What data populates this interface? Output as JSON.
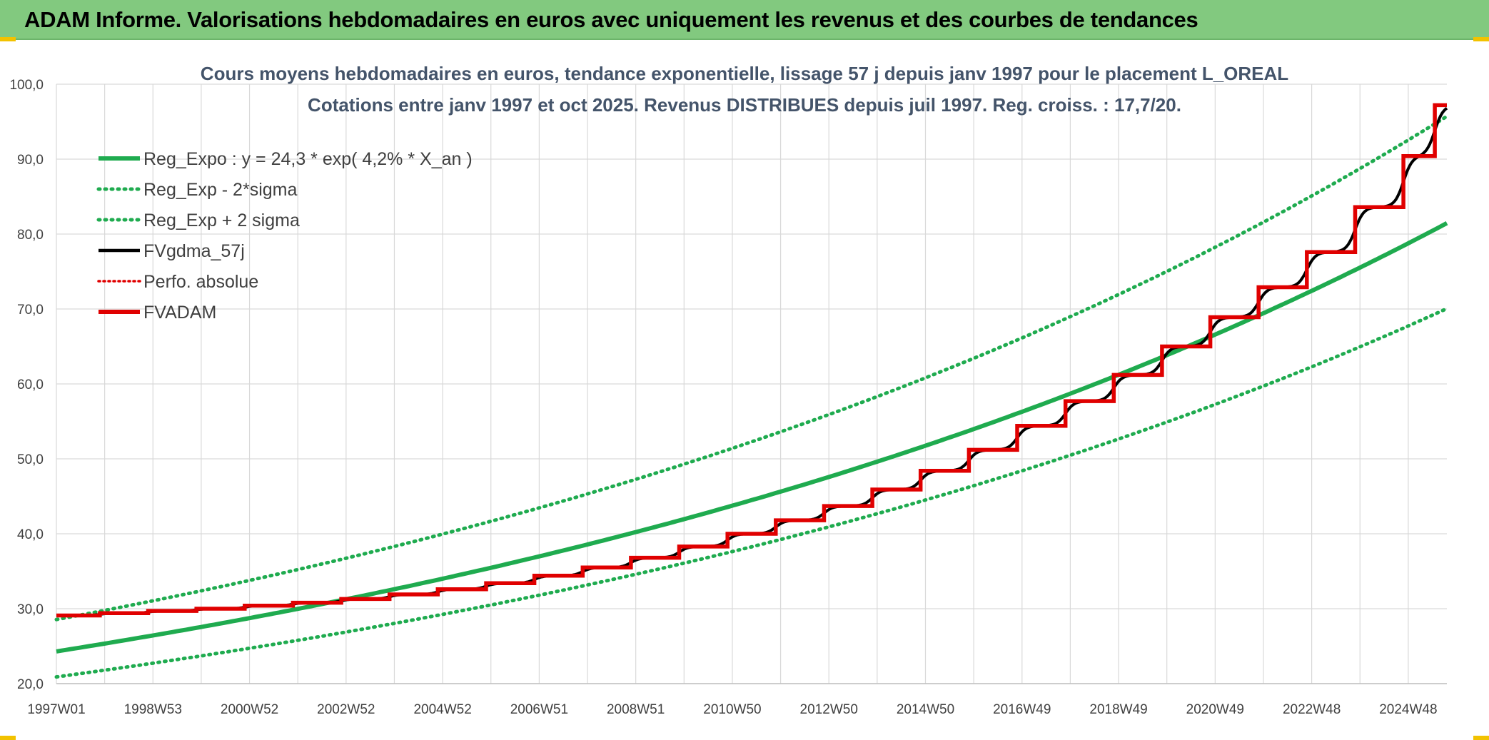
{
  "header": {
    "title": "ADAM Informe. Valorisations hebdomadaires en euros avec uniquement les revenus et des courbes de tendances"
  },
  "chart_data": {
    "type": "line",
    "title": "Cours moyens hebdomadaires en euros, tendance exponentielle, lissage 57 j depuis janv 1997 pour le placement L_OREAL",
    "subtitle": "Cotations entre janv 1997 et oct 2025. Revenus DISTRIBUES depuis juil 1997. Reg. croiss. : 17,7/20.",
    "xlabel": "",
    "ylabel": "",
    "ylim": [
      20,
      100
    ],
    "y_ticks": [
      "20,0",
      "30,0",
      "40,0",
      "50,0",
      "60,0",
      "70,0",
      "80,0",
      "90,0",
      "100,0"
    ],
    "x_tick_labels": [
      "1997W01",
      "1998W53",
      "2000W52",
      "2002W52",
      "2004W52",
      "2006W51",
      "2008W51",
      "2010W50",
      "2012W50",
      "2014W50",
      "2016W49",
      "2018W49",
      "2020W49",
      "2022W48",
      "2024W48"
    ],
    "x_range_years": [
      1997.0,
      2025.8
    ],
    "grid": true,
    "legend_position": "top-left",
    "reg_expo": {
      "a": 24.3,
      "rate": 0.042
    },
    "sigma_factors": {
      "lower": 0.86,
      "upper": 1.175
    },
    "fvadam_steps": {
      "years": [
        1997,
        1998,
        1999,
        2000,
        2001,
        2002,
        2003,
        2004,
        2005,
        2006,
        2007,
        2008,
        2009,
        2010,
        2011,
        2012,
        2013,
        2014,
        2015,
        2016,
        2017,
        2018,
        2019,
        2020,
        2021,
        2022,
        2023,
        2024,
        2025
      ],
      "values": [
        29.1,
        29.4,
        29.7,
        30.0,
        30.4,
        30.8,
        31.3,
        31.9,
        32.6,
        33.4,
        34.4,
        35.5,
        36.8,
        38.3,
        40.0,
        41.8,
        43.7,
        45.9,
        48.4,
        51.2,
        54.4,
        57.7,
        61.2,
        65.0,
        68.9,
        72.9,
        77.6,
        83.6,
        90.4
      ],
      "end_value": 97.2
    },
    "series": [
      {
        "name": "Reg_Expo : y = 24,3 * exp( 4,2% *  X_an )",
        "color": "#1fab4f",
        "style": "solid"
      },
      {
        "name": "Reg_Exp - 2*sigma",
        "color": "#1fab4f",
        "style": "dotted"
      },
      {
        "name": "Reg_Exp + 2 sigma",
        "color": "#1fab4f",
        "style": "dotted"
      },
      {
        "name": "FVgdma_57j",
        "color": "#000000",
        "style": "solid"
      },
      {
        "name": "Perfo. absolue",
        "color": "#e00000",
        "style": "dotted"
      },
      {
        "name": "FVADAM",
        "color": "#e00000",
        "style": "solid-thick"
      }
    ]
  }
}
